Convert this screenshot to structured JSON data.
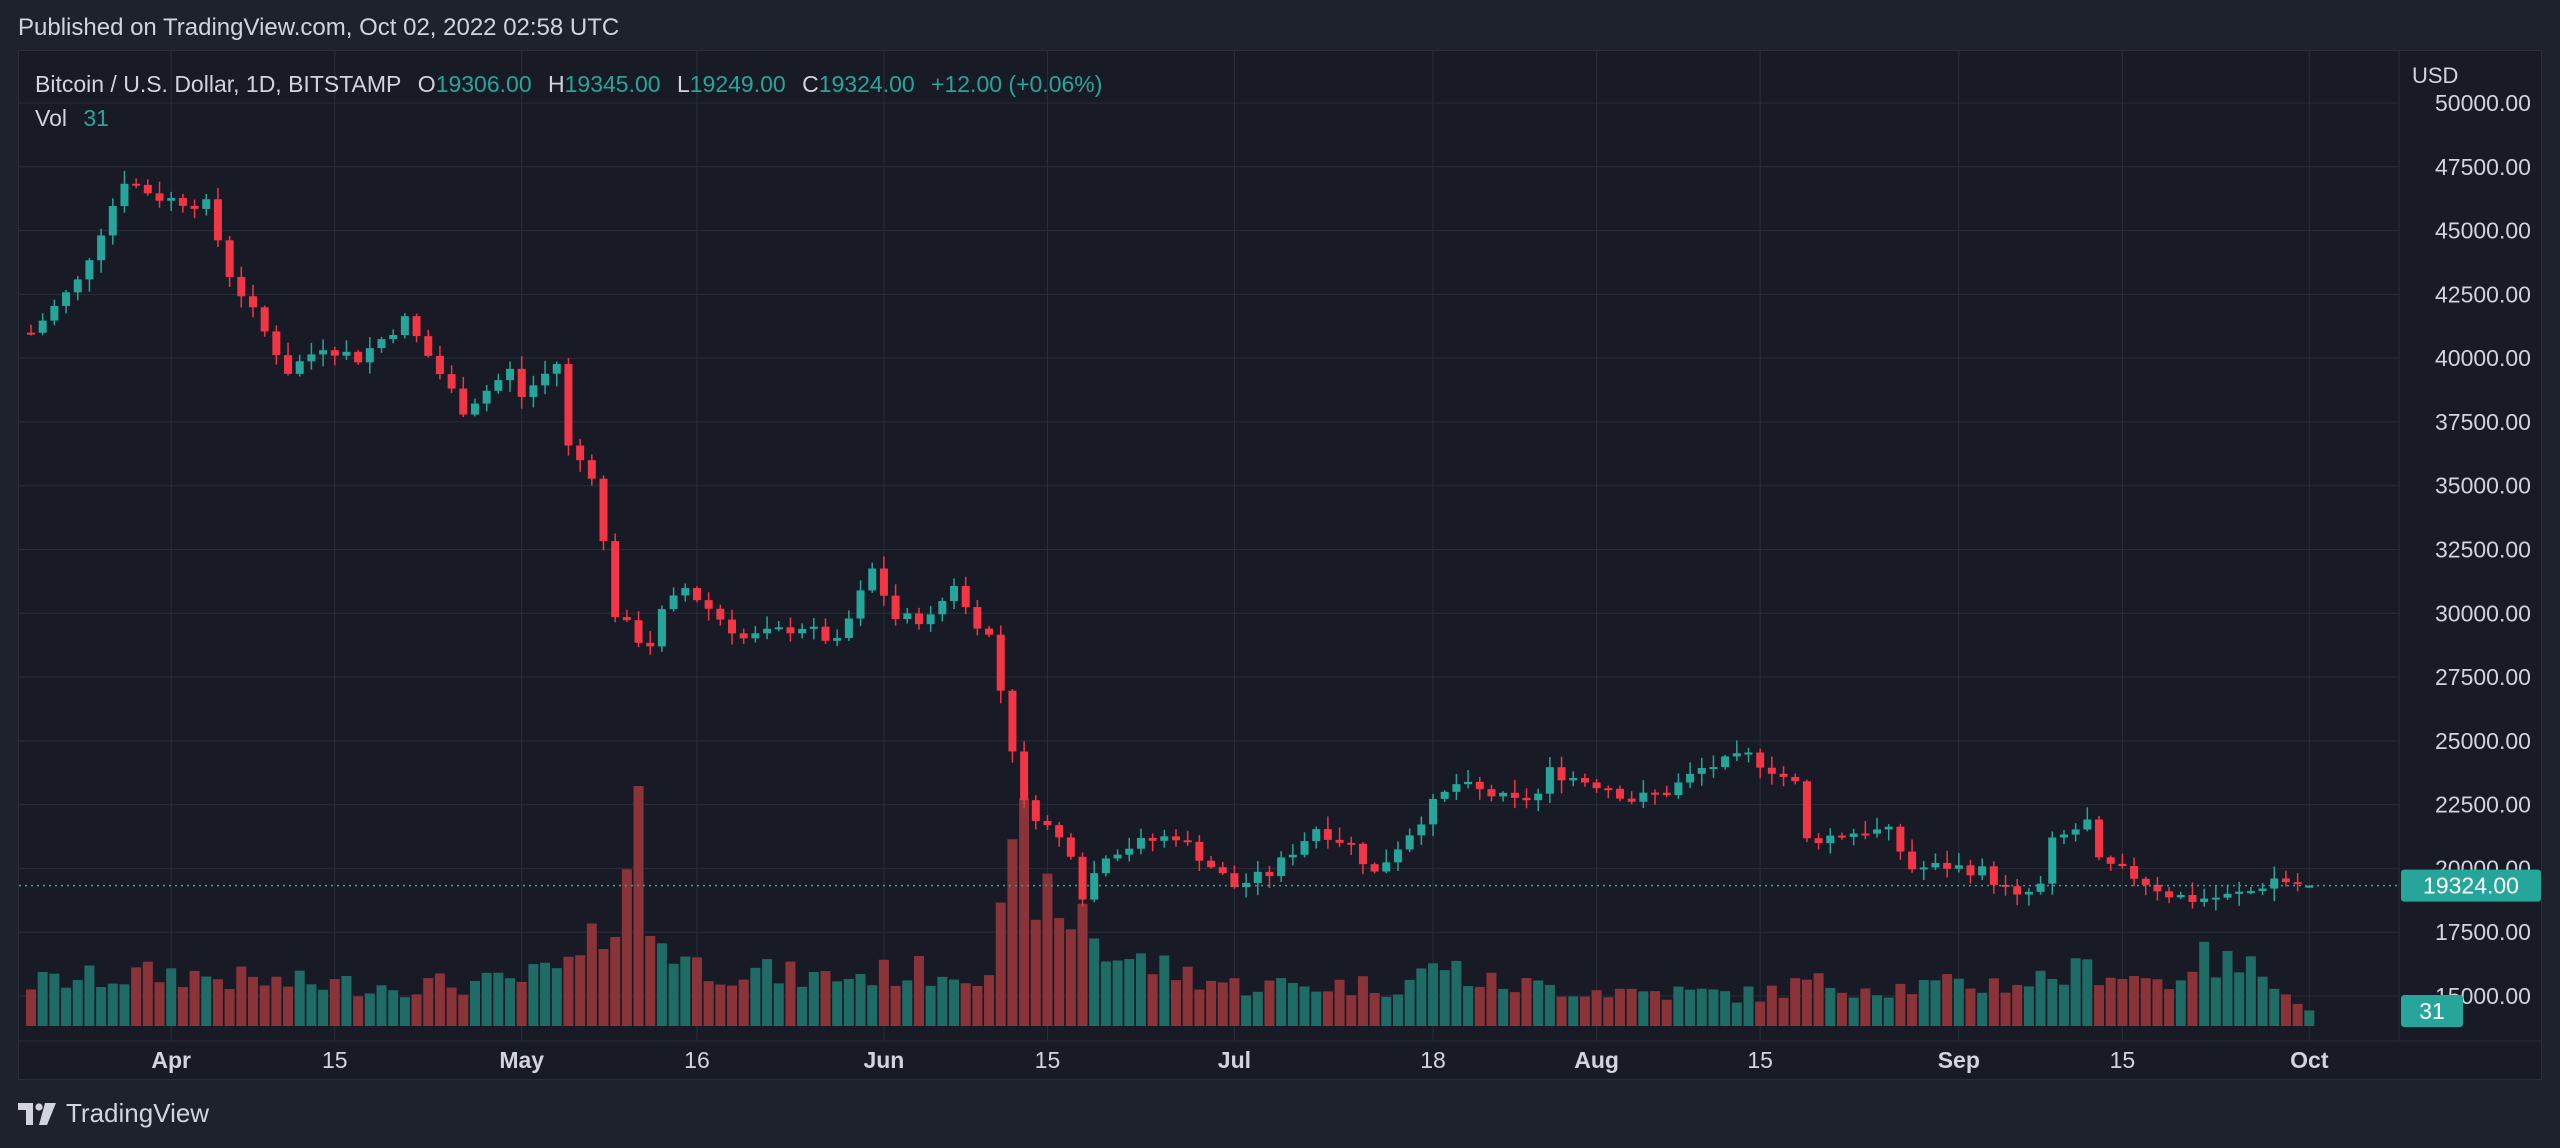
{
  "header": {
    "published": "Published on TradingView.com, Oct 02, 2022 02:58 UTC"
  },
  "legend": {
    "symbol": "Bitcoin / U.S. Dollar, 1D, BITSTAMP",
    "o_label": "O",
    "o_value": "19306.00",
    "h_label": "H",
    "h_value": "19345.00",
    "l_label": "L",
    "l_value": "19249.00",
    "c_label": "C",
    "c_value": "19324.00",
    "change": "+12.00 (+0.06%)",
    "vol_label": "Vol",
    "vol_value": "31"
  },
  "axis": {
    "currency": "USD",
    "price_ticks": [
      "50000.00",
      "47500.00",
      "45000.00",
      "42500.00",
      "40000.00",
      "37500.00",
      "35000.00",
      "32500.00",
      "30000.00",
      "27500.00",
      "25000.00",
      "22500.00",
      "20000.00",
      "17500.00",
      "15000.00"
    ],
    "time_ticks": [
      "Apr",
      "15",
      "May",
      "16",
      "Jun",
      "15",
      "Jul",
      "18",
      "Aug",
      "15",
      "Sep",
      "15",
      "Oct"
    ],
    "last_price_label": "19324.00",
    "last_volume_label": "31"
  },
  "footer": {
    "brand": "TradingView"
  },
  "colors": {
    "up": "#26a69a",
    "down": "#f23645",
    "vol_up": "#1f6b66",
    "vol_down": "#8a3339",
    "grid": "#2a2e39",
    "background": "#181b25"
  },
  "chart_data": {
    "type": "candlestick",
    "title": "Bitcoin / U.S. Dollar, 1D, BITSTAMP",
    "ylabel": "USD",
    "ylim": [
      15000,
      50000
    ],
    "x_range": [
      "2022-03-20",
      "2022-10-02"
    ],
    "volume_unit": "relative (last bar = 31)",
    "series": [
      {
        "name": "price",
        "anchors": [
          [
            "2022-03-20",
            41000
          ],
          [
            "2022-03-24",
            43000
          ],
          [
            "2022-03-28",
            47000
          ],
          [
            "2022-03-31",
            46300
          ],
          [
            "2022-04-04",
            46000
          ],
          [
            "2022-04-06",
            43300
          ],
          [
            "2022-04-11",
            39500
          ],
          [
            "2022-04-14",
            40500
          ],
          [
            "2022-04-17",
            40000
          ],
          [
            "2022-04-21",
            41500
          ],
          [
            "2022-04-26",
            38000
          ],
          [
            "2022-04-30",
            39500
          ],
          [
            "2022-05-01",
            38500
          ],
          [
            "2022-05-04",
            39800
          ],
          [
            "2022-05-05",
            36500
          ],
          [
            "2022-05-07",
            35500
          ],
          [
            "2022-05-09",
            30000
          ],
          [
            "2022-05-11",
            29000
          ],
          [
            "2022-05-12",
            28800
          ],
          [
            "2022-05-13",
            30000
          ],
          [
            "2022-05-15",
            31000
          ],
          [
            "2022-05-20",
            29000
          ],
          [
            "2022-05-25",
            29500
          ],
          [
            "2022-05-28",
            28800
          ],
          [
            "2022-05-31",
            31700
          ],
          [
            "2022-06-02",
            29800
          ],
          [
            "2022-06-05",
            29800
          ],
          [
            "2022-06-07",
            31200
          ],
          [
            "2022-06-08",
            30200
          ],
          [
            "2022-06-10",
            29100
          ],
          [
            "2022-06-11",
            27000
          ],
          [
            "2022-06-13",
            22500
          ],
          [
            "2022-06-14",
            22100
          ],
          [
            "2022-06-17",
            20700
          ],
          [
            "2022-06-18",
            19000
          ],
          [
            "2022-06-20",
            20600
          ],
          [
            "2022-06-23",
            21000
          ],
          [
            "2022-06-26",
            21300
          ],
          [
            "2022-06-29",
            20100
          ],
          [
            "2022-07-01",
            19300
          ],
          [
            "2022-07-04",
            19800
          ],
          [
            "2022-07-08",
            21600
          ],
          [
            "2022-07-11",
            20900
          ],
          [
            "2022-07-13",
            19800
          ],
          [
            "2022-07-18",
            22500
          ],
          [
            "2022-07-20",
            23300
          ],
          [
            "2022-07-25",
            22600
          ],
          [
            "2022-07-27",
            22900
          ],
          [
            "2022-07-28",
            23800
          ],
          [
            "2022-08-02",
            23200
          ],
          [
            "2022-08-04",
            22700
          ],
          [
            "2022-08-07",
            23000
          ],
          [
            "2022-08-10",
            23900
          ],
          [
            "2022-08-14",
            24400
          ],
          [
            "2022-08-16",
            23900
          ],
          [
            "2022-08-18",
            23300
          ],
          [
            "2022-08-19",
            21100
          ],
          [
            "2022-08-24",
            21500
          ],
          [
            "2022-08-26",
            21400
          ],
          [
            "2022-08-28",
            20000
          ],
          [
            "2022-08-31",
            20100
          ],
          [
            "2022-09-03",
            19900
          ],
          [
            "2022-09-06",
            18800
          ],
          [
            "2022-09-08",
            19300
          ],
          [
            "2022-09-09",
            21000
          ],
          [
            "2022-09-12",
            21800
          ],
          [
            "2022-09-13",
            20200
          ],
          [
            "2022-09-16",
            19700
          ],
          [
            "2022-09-19",
            19000
          ],
          [
            "2022-09-21",
            18800
          ],
          [
            "2022-09-24",
            18900
          ],
          [
            "2022-09-26",
            19100
          ],
          [
            "2022-09-28",
            19600
          ],
          [
            "2022-10-01",
            19306
          ]
        ]
      },
      {
        "name": "volume",
        "anchors": [
          [
            "2022-03-20",
            18
          ],
          [
            "2022-03-26",
            20
          ],
          [
            "2022-04-01",
            22
          ],
          [
            "2022-04-10",
            18
          ],
          [
            "2022-04-20",
            17
          ],
          [
            "2022-04-30",
            18
          ],
          [
            "2022-05-06",
            26
          ],
          [
            "2022-05-08",
            40
          ],
          [
            "2022-05-09",
            52
          ],
          [
            "2022-05-10",
            70
          ],
          [
            "2022-05-11",
            100
          ],
          [
            "2022-05-12",
            40
          ],
          [
            "2022-05-16",
            25
          ],
          [
            "2022-05-26",
            20
          ],
          [
            "2022-06-01",
            22
          ],
          [
            "2022-06-10",
            24
          ],
          [
            "2022-06-12",
            60
          ],
          [
            "2022-06-13",
            76
          ],
          [
            "2022-06-14",
            60
          ],
          [
            "2022-06-16",
            40
          ],
          [
            "2022-06-18",
            50
          ],
          [
            "2022-06-20",
            30
          ],
          [
            "2022-07-01",
            17
          ],
          [
            "2022-07-15",
            17
          ],
          [
            "2022-07-19",
            26
          ],
          [
            "2022-07-22",
            18
          ],
          [
            "2022-08-01",
            15
          ],
          [
            "2022-08-15",
            13
          ],
          [
            "2022-08-19",
            18
          ],
          [
            "2022-08-26",
            16
          ],
          [
            "2022-09-06",
            18
          ],
          [
            "2022-09-13",
            24
          ],
          [
            "2022-09-19",
            18
          ],
          [
            "2022-09-21",
            28
          ],
          [
            "2022-09-28",
            22
          ],
          [
            "2022-10-01",
            6
          ]
        ]
      }
    ],
    "last": {
      "date": "2022-10-01",
      "open": 19306,
      "high": 19345,
      "low": 19249,
      "close": 19324,
      "volume": 31
    }
  }
}
